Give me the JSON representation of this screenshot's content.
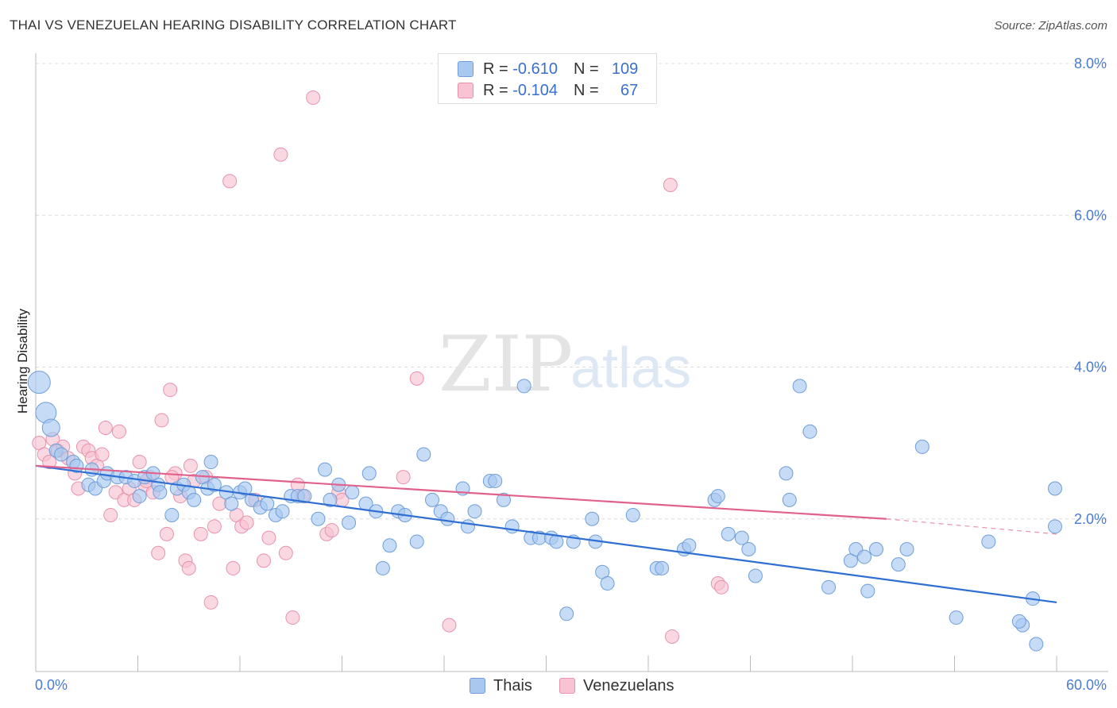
{
  "title": "THAI VS VENEZUELAN HEARING DISABILITY CORRELATION CHART",
  "source": "Source: ZipAtlas.com",
  "watermark": {
    "zip": "ZIP",
    "atlas": "atlas"
  },
  "legend": {
    "rows": [
      {
        "r_label": "R = ",
        "r_value": "-0.610",
        "n_label": "N = ",
        "n_value": "109",
        "color": "#a8c8f0",
        "border": "#6f9ed8"
      },
      {
        "r_label": "R = ",
        "r_value": "-0.104",
        "n_label": "N = ",
        "n_value": "67",
        "color": "#f8c3d3",
        "border": "#e892ad"
      }
    ]
  },
  "bottom_legend": [
    {
      "label": "Thais",
      "color": "#a8c8f0",
      "border": "#6f9ed8"
    },
    {
      "label": "Venezuelans",
      "color": "#f8c3d3",
      "border": "#e892ad"
    }
  ],
  "chart_data": {
    "type": "scatter",
    "title": "THAI VS VENEZUELAN HEARING DISABILITY CORRELATION CHART",
    "ylabel": "Hearing Disability",
    "xlabel": "",
    "x_tick_labels": [
      "0.0%",
      "60.0%"
    ],
    "y_tick_labels": [
      "2.0%",
      "4.0%",
      "6.0%",
      "8.0%"
    ],
    "xlim": [
      0,
      60
    ],
    "ylim": [
      0,
      8
    ],
    "grid": "horizontal dashed",
    "legend_position": "top-center",
    "series": [
      {
        "name": "Thais",
        "color": "#a8c8f0",
        "stroke": "#6f9ed8",
        "trend": {
          "x": [
            0,
            60
          ],
          "y": [
            2.7,
            0.9
          ],
          "color": "#2f6fd3"
        },
        "points": [
          [
            0.2,
            3.8
          ],
          [
            0.6,
            3.4
          ],
          [
            0.9,
            3.2
          ],
          [
            1.2,
            2.9
          ],
          [
            1.5,
            2.85
          ],
          [
            2.2,
            2.75
          ],
          [
            2.4,
            2.7
          ],
          [
            3.1,
            2.45
          ],
          [
            3.3,
            2.65
          ],
          [
            3.5,
            2.4
          ],
          [
            4.0,
            2.5
          ],
          [
            4.2,
            2.6
          ],
          [
            4.8,
            2.55
          ],
          [
            5.3,
            2.55
          ],
          [
            5.8,
            2.5
          ],
          [
            6.1,
            2.3
          ],
          [
            6.4,
            2.55
          ],
          [
            7.2,
            2.45
          ],
          [
            6.9,
            2.6
          ],
          [
            7.3,
            2.35
          ],
          [
            8.0,
            2.05
          ],
          [
            8.3,
            2.4
          ],
          [
            8.7,
            2.45
          ],
          [
            9.0,
            2.35
          ],
          [
            9.3,
            2.25
          ],
          [
            9.8,
            2.55
          ],
          [
            10.1,
            2.4
          ],
          [
            10.3,
            2.75
          ],
          [
            10.5,
            2.45
          ],
          [
            11.2,
            2.35
          ],
          [
            11.5,
            2.2
          ],
          [
            12.0,
            2.35
          ],
          [
            12.3,
            2.4
          ],
          [
            12.7,
            2.25
          ],
          [
            13.2,
            2.15
          ],
          [
            13.6,
            2.2
          ],
          [
            14.1,
            2.05
          ],
          [
            14.5,
            2.1
          ],
          [
            15.0,
            2.3
          ],
          [
            15.4,
            2.3
          ],
          [
            15.8,
            2.3
          ],
          [
            16.6,
            2.0
          ],
          [
            17.0,
            2.65
          ],
          [
            17.3,
            2.25
          ],
          [
            17.8,
            2.45
          ],
          [
            18.4,
            1.95
          ],
          [
            18.6,
            2.35
          ],
          [
            19.6,
            2.6
          ],
          [
            19.4,
            2.2
          ],
          [
            20.0,
            2.1
          ],
          [
            20.4,
            1.35
          ],
          [
            20.8,
            1.65
          ],
          [
            21.3,
            2.1
          ],
          [
            21.7,
            2.05
          ],
          [
            22.4,
            1.7
          ],
          [
            22.8,
            2.85
          ],
          [
            23.3,
            2.25
          ],
          [
            23.8,
            2.1
          ],
          [
            24.2,
            2.0
          ],
          [
            25.1,
            2.4
          ],
          [
            25.4,
            1.9
          ],
          [
            25.8,
            2.1
          ],
          [
            26.7,
            2.5
          ],
          [
            27.0,
            2.5
          ],
          [
            27.5,
            2.25
          ],
          [
            28.0,
            1.9
          ],
          [
            28.7,
            3.75
          ],
          [
            29.1,
            1.75
          ],
          [
            29.6,
            1.75
          ],
          [
            30.3,
            1.75
          ],
          [
            30.6,
            1.7
          ],
          [
            31.2,
            0.75
          ],
          [
            31.6,
            1.7
          ],
          [
            32.7,
            2.0
          ],
          [
            32.9,
            1.7
          ],
          [
            33.3,
            1.3
          ],
          [
            33.6,
            1.15
          ],
          [
            35.1,
            2.05
          ],
          [
            36.5,
            1.35
          ],
          [
            36.8,
            1.35
          ],
          [
            38.1,
            1.6
          ],
          [
            38.4,
            1.65
          ],
          [
            39.9,
            2.25
          ],
          [
            40.1,
            2.3
          ],
          [
            40.7,
            1.8
          ],
          [
            41.5,
            1.75
          ],
          [
            41.9,
            1.6
          ],
          [
            42.3,
            1.25
          ],
          [
            44.1,
            2.6
          ],
          [
            44.3,
            2.25
          ],
          [
            44.9,
            3.75
          ],
          [
            45.5,
            3.15
          ],
          [
            46.6,
            1.1
          ],
          [
            47.9,
            1.45
          ],
          [
            48.2,
            1.6
          ],
          [
            48.7,
            1.5
          ],
          [
            48.9,
            1.05
          ],
          [
            49.4,
            1.6
          ],
          [
            50.7,
            1.4
          ],
          [
            51.2,
            1.6
          ],
          [
            52.1,
            2.95
          ],
          [
            54.1,
            0.7
          ],
          [
            56.0,
            1.7
          ],
          [
            58.0,
            0.6
          ],
          [
            58.6,
            0.95
          ],
          [
            58.8,
            0.35
          ],
          [
            60.0,
            1.9
          ],
          [
            61.0,
            2.4
          ],
          [
            57.8,
            0.65
          ]
        ],
        "sizes": {
          "0.2,3.8": 24,
          "0.6,3.4": 22,
          "0.9,3.2": 18
        }
      },
      {
        "name": "Venezuelans",
        "color": "#f8c3d3",
        "stroke": "#e892ad",
        "trend": {
          "x": [
            0,
            50
          ],
          "y": [
            2.7,
            2.0
          ],
          "dash_to": [
            60,
            1.8
          ],
          "color": "#e0628c"
        },
        "points": [
          [
            0.2,
            3.0
          ],
          [
            0.5,
            2.85
          ],
          [
            0.8,
            2.75
          ],
          [
            1.0,
            3.05
          ],
          [
            1.3,
            2.9
          ],
          [
            1.6,
            2.95
          ],
          [
            1.9,
            2.8
          ],
          [
            2.3,
            2.6
          ],
          [
            2.5,
            2.4
          ],
          [
            2.8,
            2.95
          ],
          [
            3.1,
            2.9
          ],
          [
            3.3,
            2.8
          ],
          [
            3.6,
            2.7
          ],
          [
            3.9,
            2.85
          ],
          [
            4.1,
            3.2
          ],
          [
            4.4,
            2.05
          ],
          [
            4.7,
            2.35
          ],
          [
            4.9,
            3.15
          ],
          [
            5.2,
            2.25
          ],
          [
            5.5,
            2.4
          ],
          [
            5.8,
            2.25
          ],
          [
            6.1,
            2.75
          ],
          [
            6.4,
            2.45
          ],
          [
            6.7,
            2.55
          ],
          [
            6.9,
            2.35
          ],
          [
            7.2,
            1.55
          ],
          [
            7.4,
            3.3
          ],
          [
            7.7,
            1.8
          ],
          [
            7.9,
            3.7
          ],
          [
            8.2,
            2.6
          ],
          [
            8.5,
            2.3
          ],
          [
            8.8,
            1.45
          ],
          [
            9.0,
            1.35
          ],
          [
            9.1,
            2.7
          ],
          [
            9.3,
            2.5
          ],
          [
            9.7,
            1.8
          ],
          [
            10.0,
            2.55
          ],
          [
            10.3,
            0.9
          ],
          [
            10.5,
            1.9
          ],
          [
            10.8,
            2.2
          ],
          [
            11.4,
            6.45
          ],
          [
            11.6,
            1.35
          ],
          [
            11.8,
            2.05
          ],
          [
            12.1,
            1.9
          ],
          [
            12.4,
            1.95
          ],
          [
            12.9,
            2.25
          ],
          [
            13.4,
            1.45
          ],
          [
            13.7,
            1.75
          ],
          [
            14.4,
            6.8
          ],
          [
            14.7,
            1.55
          ],
          [
            15.1,
            0.7
          ],
          [
            15.4,
            2.45
          ],
          [
            15.7,
            2.3
          ],
          [
            16.3,
            7.55
          ],
          [
            17.1,
            1.8
          ],
          [
            17.4,
            1.85
          ],
          [
            17.8,
            2.35
          ],
          [
            18.0,
            2.25
          ],
          [
            21.6,
            2.55
          ],
          [
            22.4,
            3.85
          ],
          [
            24.3,
            0.6
          ],
          [
            37.3,
            6.4
          ],
          [
            37.4,
            0.45
          ],
          [
            40.1,
            1.15
          ],
          [
            40.3,
            1.1
          ],
          [
            8.0,
            2.55
          ],
          [
            6.5,
            2.5
          ]
        ]
      }
    ]
  }
}
